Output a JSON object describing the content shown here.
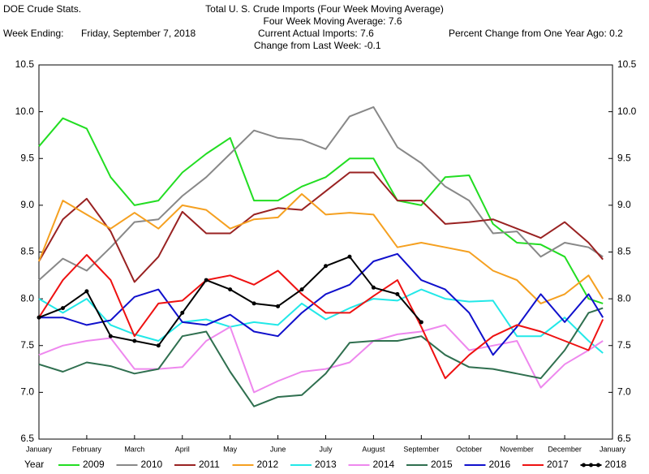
{
  "header": {
    "source": "DOE Crude Stats.",
    "week_ending_label": "Week Ending:",
    "week_ending": "Friday, September 7, 2018",
    "moving_average_label": "Four Week Moving Average:",
    "moving_average": 7.6,
    "current_label": "Current Actual Imports:",
    "current": 7.6,
    "percent_change_label": "Percent Change from One Year Ago:",
    "percent_change": 0.2,
    "weekly_change_label": "Change from Last Week:",
    "weekly_change": -0.1
  },
  "chart_data": {
    "type": "line",
    "title": "Total U.  S. Crude Imports (Four Week Moving Average)",
    "legend_title": "Year",
    "legend": "bottom",
    "grid": false,
    "xlim": [
      0,
      12
    ],
    "xticks": [
      {
        "value": 0,
        "label": "January"
      },
      {
        "value": 1,
        "label": "February"
      },
      {
        "value": 2,
        "label": "March"
      },
      {
        "value": 3,
        "label": "April"
      },
      {
        "value": 4,
        "label": "May"
      },
      {
        "value": 5,
        "label": "June"
      },
      {
        "value": 6,
        "label": "July"
      },
      {
        "value": 7,
        "label": "August"
      },
      {
        "value": 8,
        "label": "September"
      },
      {
        "value": 9,
        "label": "October"
      },
      {
        "value": 10,
        "label": "November"
      },
      {
        "value": 11,
        "label": "December"
      },
      {
        "value": 12,
        "label": "January"
      }
    ],
    "ylim": [
      6.5,
      10.5
    ],
    "yticks": [
      6.5,
      {
        "value": 7,
        "label": "7.0"
      },
      7.5,
      {
        "value": 8,
        "label": "8.0"
      },
      8.5,
      {
        "value": 9,
        "label": "9.0"
      },
      9.5,
      {
        "value": 10,
        "label": "10.0"
      },
      10.5
    ],
    "x": [
      0,
      0.5,
      1,
      1.5,
      2,
      2.5,
      3,
      3.5,
      4,
      4.5,
      5,
      5.5,
      6,
      6.5,
      7,
      7.5,
      8,
      8.5,
      9,
      9.5,
      10,
      10.5,
      11,
      11.5,
      11.8
    ],
    "series": [
      {
        "name": "2009",
        "color": "#22dd22",
        "values": [
          9.63,
          9.93,
          9.82,
          9.3,
          9.0,
          9.05,
          9.35,
          9.55,
          9.72,
          9.05,
          9.05,
          9.2,
          9.3,
          9.5,
          9.5,
          9.05,
          9.0,
          9.3,
          9.32,
          8.8,
          8.6,
          8.58,
          8.45,
          8.0,
          7.95
        ]
      },
      {
        "name": "2010",
        "color": "#888888",
        "values": [
          8.2,
          8.43,
          8.3,
          8.55,
          8.82,
          8.85,
          9.1,
          9.3,
          9.55,
          9.8,
          9.72,
          9.7,
          9.6,
          9.95,
          10.05,
          9.62,
          9.45,
          9.2,
          9.05,
          8.7,
          8.72,
          8.45,
          8.6,
          8.55,
          8.45
        ]
      },
      {
        "name": "2011",
        "color": "#992222",
        "values": [
          8.4,
          8.85,
          9.07,
          8.72,
          8.18,
          8.45,
          8.93,
          8.7,
          8.7,
          8.9,
          8.97,
          8.95,
          9.15,
          9.35,
          9.35,
          9.05,
          9.05,
          8.8,
          8.82,
          8.85,
          8.75,
          8.65,
          8.82,
          8.6,
          8.42
        ]
      },
      {
        "name": "2012",
        "color": "#f5a020",
        "values": [
          8.4,
          9.05,
          8.9,
          8.75,
          8.92,
          8.75,
          9.0,
          8.95,
          8.75,
          8.85,
          8.87,
          9.12,
          8.9,
          8.92,
          8.9,
          8.55,
          8.6,
          8.55,
          8.5,
          8.3,
          8.2,
          7.95,
          8.05,
          8.25,
          8.0
        ]
      },
      {
        "name": "2013",
        "color": "#22e8e8",
        "values": [
          8.0,
          7.85,
          8.0,
          7.72,
          7.62,
          7.55,
          7.75,
          7.78,
          7.7,
          7.75,
          7.72,
          7.95,
          7.78,
          7.9,
          8.0,
          7.98,
          8.1,
          8.0,
          7.97,
          7.98,
          7.6,
          7.6,
          7.8,
          7.55,
          7.42
        ]
      },
      {
        "name": "2014",
        "color": "#ee88ee",
        "values": [
          7.4,
          7.5,
          7.55,
          7.58,
          7.25,
          7.25,
          7.27,
          7.55,
          7.7,
          7.0,
          7.12,
          7.22,
          7.25,
          7.32,
          7.55,
          7.62,
          7.65,
          7.72,
          7.45,
          7.5,
          7.55,
          7.05,
          7.3,
          7.45,
          7.55
        ]
      },
      {
        "name": "2015",
        "color": "#2f6f4f",
        "values": [
          7.3,
          7.22,
          7.32,
          7.28,
          7.2,
          7.25,
          7.6,
          7.65,
          7.22,
          6.85,
          6.95,
          6.97,
          7.2,
          7.53,
          7.55,
          7.55,
          7.6,
          7.4,
          7.27,
          7.25,
          7.2,
          7.15,
          7.45,
          7.85,
          7.9
        ]
      },
      {
        "name": "2016",
        "color": "#1010cc",
        "values": [
          7.8,
          7.8,
          7.72,
          7.77,
          8.02,
          8.1,
          7.75,
          7.72,
          7.83,
          7.65,
          7.6,
          7.85,
          8.05,
          8.15,
          8.4,
          8.48,
          8.2,
          8.1,
          7.85,
          7.4,
          7.7,
          8.05,
          7.75,
          8.05,
          7.8
        ]
      },
      {
        "name": "2017",
        "color": "#ee1111",
        "values": [
          7.8,
          8.2,
          8.47,
          8.2,
          7.6,
          7.95,
          7.98,
          8.2,
          8.25,
          8.15,
          8.3,
          8.05,
          7.85,
          7.85,
          8.03,
          8.2,
          7.7,
          7.15,
          7.4,
          7.6,
          7.72,
          7.65,
          7.55,
          7.45,
          7.78
        ]
      },
      {
        "name": "2018",
        "color": "#000000",
        "markers": true,
        "values": [
          7.8,
          7.9,
          8.08,
          7.6,
          7.55,
          7.5,
          7.85,
          8.2,
          8.1,
          7.95,
          7.92,
          8.1,
          8.35,
          8.45,
          8.12,
          8.05,
          7.75,
          null,
          null,
          null,
          null,
          null,
          null,
          null,
          null
        ]
      }
    ]
  }
}
